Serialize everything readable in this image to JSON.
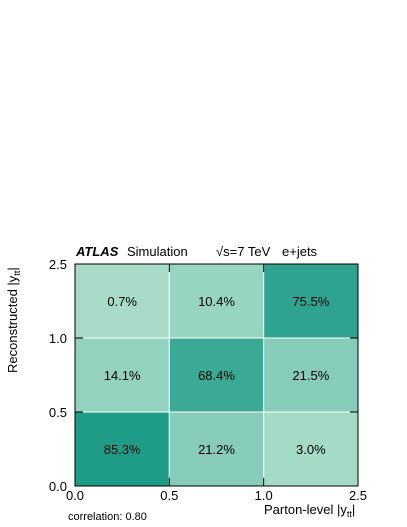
{
  "header": {
    "experiment": "ATLAS",
    "label": "Simulation",
    "energy": "√s=7 TeV",
    "channel": "e+jets"
  },
  "footer": {
    "correlation": "correlation: 0.80"
  },
  "colors": {
    "low": "#a8dcc8",
    "high": "#1e9c88",
    "grid": "#ffffff",
    "frame": "#000000"
  },
  "chart_data": {
    "type": "heatmap",
    "xlabel_main": "Parton-level |y",
    "xlabel_sub": "tt",
    "xlabel_end": "|",
    "ylabel_main": "Reconstructed |y",
    "ylabel_sub": "tt",
    "ylabel_end": "|",
    "x_edges": [
      0.0,
      0.5,
      1.0,
      2.5
    ],
    "y_edges": [
      0.0,
      0.5,
      1.0,
      2.5
    ],
    "x_ticks": [
      "0.0",
      "0.5",
      "1.0",
      "2.5"
    ],
    "y_ticks": [
      "0.0",
      "0.5",
      "1.0",
      "2.5"
    ],
    "cells": [
      {
        "x_bin": 0,
        "y_bin": 0,
        "value": 85.3,
        "label": "85.3%"
      },
      {
        "x_bin": 1,
        "y_bin": 0,
        "value": 21.2,
        "label": "21.2%"
      },
      {
        "x_bin": 2,
        "y_bin": 0,
        "value": 3.0,
        "label": "3.0%"
      },
      {
        "x_bin": 0,
        "y_bin": 1,
        "value": 14.1,
        "label": "14.1%"
      },
      {
        "x_bin": 1,
        "y_bin": 1,
        "value": 68.4,
        "label": "68.4%"
      },
      {
        "x_bin": 2,
        "y_bin": 1,
        "value": 21.5,
        "label": "21.5%"
      },
      {
        "x_bin": 0,
        "y_bin": 2,
        "value": 0.7,
        "label": "0.7%"
      },
      {
        "x_bin": 1,
        "y_bin": 2,
        "value": 10.4,
        "label": "10.4%"
      },
      {
        "x_bin": 2,
        "y_bin": 2,
        "value": 75.5,
        "label": "75.5%"
      }
    ]
  }
}
